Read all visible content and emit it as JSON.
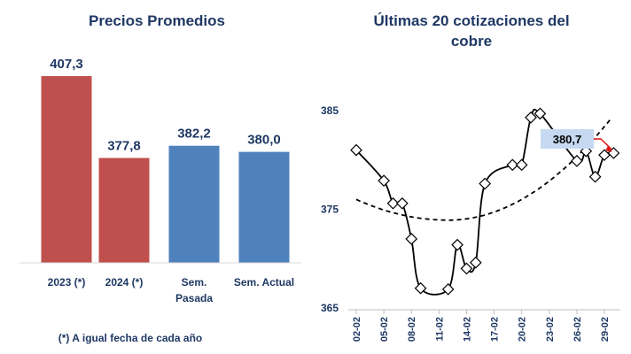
{
  "chart_data": [
    {
      "type": "bar",
      "title": "Precios Promedios",
      "categories": [
        "2023 (*)",
        "2024 (*)",
        "Sem.\nPasada",
        "Sem. Actual"
      ],
      "values": [
        407.3,
        377.8,
        382.2,
        380.0
      ],
      "value_labels": [
        "407,3",
        "377,8",
        "382,2",
        "380,0"
      ],
      "colors": [
        "#c0504d",
        "#c0504d",
        "#4f81bd",
        "#4f81bd"
      ],
      "baseline": 340,
      "ylim": [
        340,
        410
      ],
      "footnote": "(*) A igual fecha de cada año"
    },
    {
      "type": "line",
      "title": "Últimas 20 cotizaciones del cobre",
      "x": [
        "02-02",
        "03-02",
        "04-02",
        "05-02",
        "06-02",
        "07-02",
        "08-02",
        "09-02",
        "10-02",
        "11-02",
        "12-02",
        "13-02",
        "14-02",
        "15-02",
        "16-02",
        "17-02",
        "18-02",
        "19-02",
        "20-02",
        "21-02",
        "22-02",
        "23-02",
        "24-02",
        "25-02",
        "26-02",
        "27-02",
        "28-02",
        "29-02",
        "01-03"
      ],
      "x_tick_labels": [
        "02-02",
        "05-02",
        "08-02",
        "11-02",
        "14-02",
        "17-02",
        "20-02",
        "23-02",
        "26-02",
        "29-02"
      ],
      "series": [
        {
          "points": [
            {
              "x": "02-02",
              "y": 381.0
            },
            {
              "x": "05-02",
              "y": 377.9
            },
            {
              "x": "06-02",
              "y": 375.6
            },
            {
              "x": "07-02",
              "y": 375.6
            },
            {
              "x": "08-02",
              "y": 372.0
            },
            {
              "x": "09-02",
              "y": 367.0
            },
            {
              "x": "12-02",
              "y": 366.9
            },
            {
              "x": "13-02",
              "y": 371.4
            },
            {
              "x": "14-02",
              "y": 369.0
            },
            {
              "x": "15-02",
              "y": 369.6
            },
            {
              "x": "16-02",
              "y": 377.6
            },
            {
              "x": "19-02",
              "y": 379.5
            },
            {
              "x": "20-02",
              "y": 379.5
            },
            {
              "x": "21-02",
              "y": 384.3
            },
            {
              "x": "22-02",
              "y": 384.7
            },
            {
              "x": "26-02",
              "y": 379.9
            },
            {
              "x": "27-02",
              "y": 380.9
            },
            {
              "x": "28-02",
              "y": 378.3
            },
            {
              "x": "29-02",
              "y": 380.5
            },
            {
              "x": "01-03",
              "y": 380.7
            }
          ]
        }
      ],
      "trend": {
        "style": "dashed",
        "type": "polynomial"
      },
      "yticks": [
        "365",
        "375",
        "385"
      ],
      "ylim": [
        365,
        386
      ],
      "callout": {
        "text": "380,7",
        "x": "01-03",
        "y": 380.7
      }
    }
  ]
}
